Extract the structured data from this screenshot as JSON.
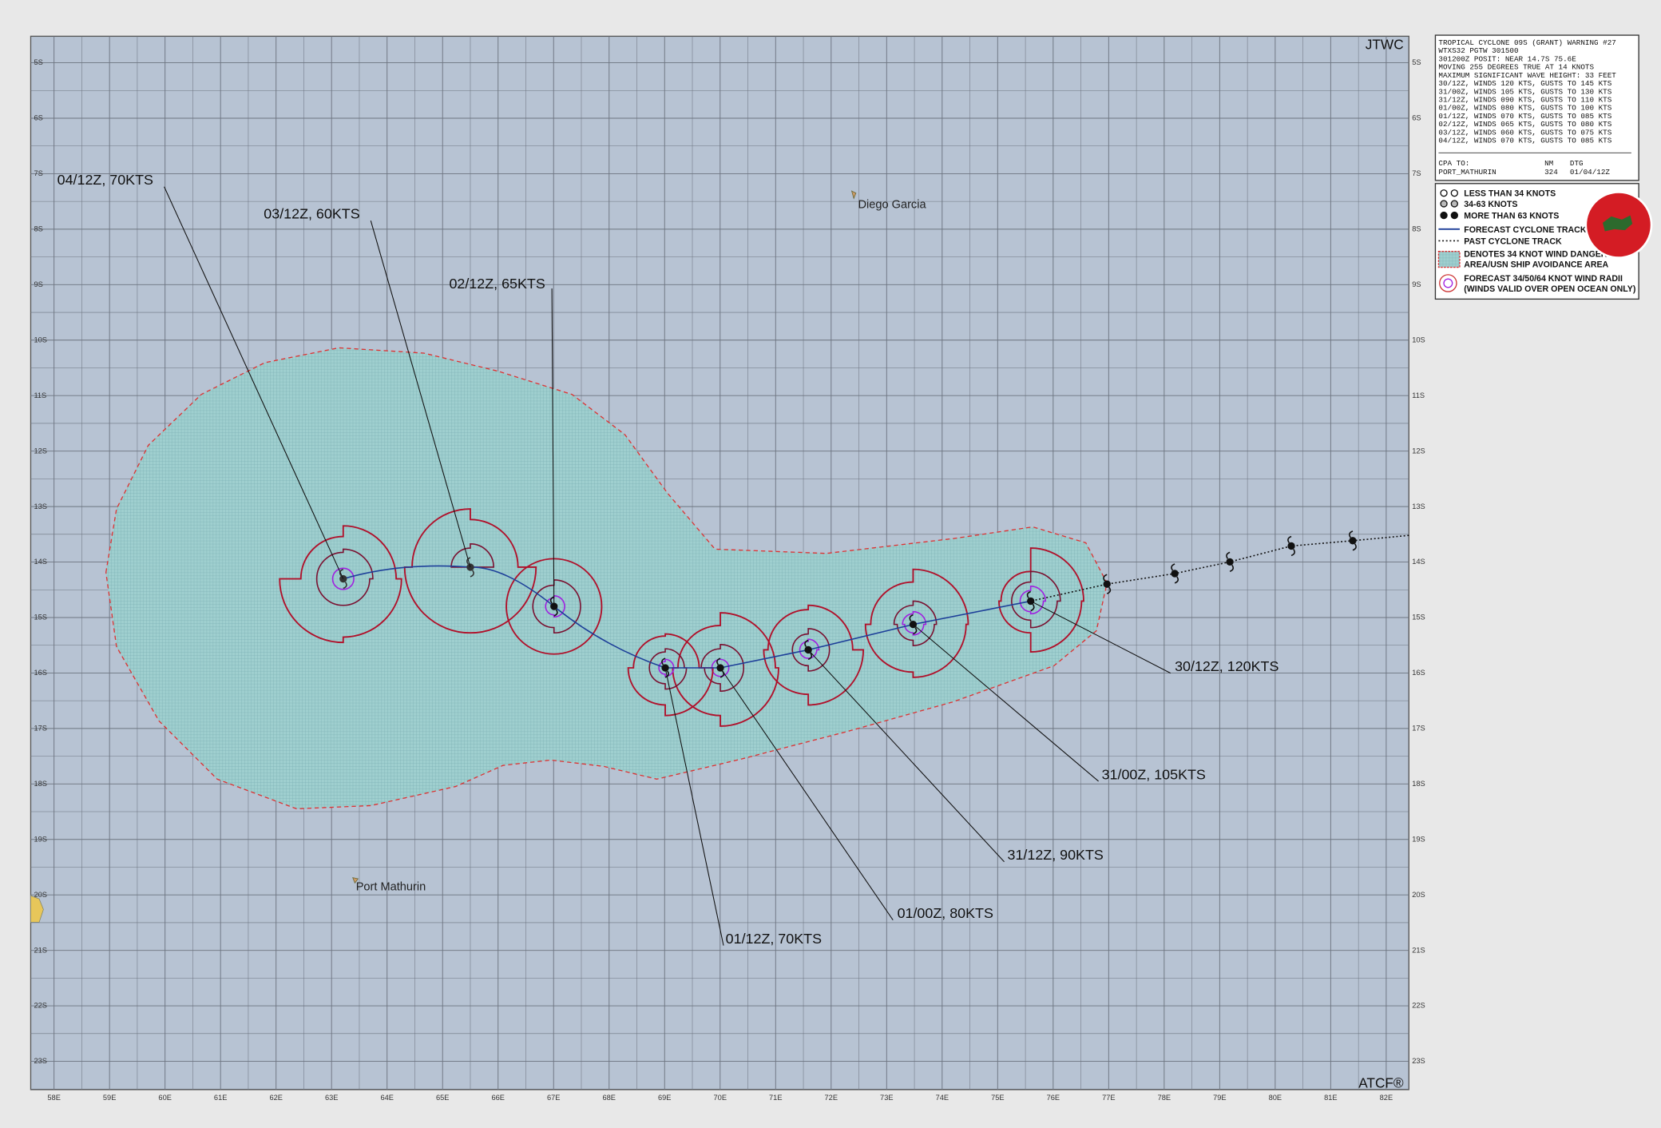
{
  "header": {
    "agency": "JTWC",
    "footer": "ATCF®"
  },
  "warning": {
    "lines": [
      "TROPICAL CYCLONE 09S (GRANT) WARNING #27",
      "WTXS32 PGTW 301500",
      "301200Z POSIT: NEAR 14.7S 75.6E",
      "MOVING 255 DEGREES TRUE AT 14 KNOTS",
      "MAXIMUM SIGNIFICANT WAVE HEIGHT: 33 FEET",
      "30/12Z, WINDS 120 KTS, GUSTS TO 145 KTS",
      "31/00Z, WINDS 105 KTS, GUSTS TO 130 KTS",
      "31/12Z, WINDS 090 KTS, GUSTS TO 110 KTS",
      "01/00Z, WINDS 080 KTS, GUSTS TO 100 KTS",
      "01/12Z, WINDS 070 KTS, GUSTS TO 085 KTS",
      "02/12Z, WINDS 065 KTS, GUSTS TO 080 KTS",
      "03/12Z, WINDS 060 KTS, GUSTS TO 075 KTS",
      "04/12Z, WINDS 070 KTS, GUSTS TO 085 KTS"
    ],
    "cpa": {
      "header": [
        "CPA TO:",
        "NM",
        "DTG"
      ],
      "row": [
        "PORT_MATHURIN",
        "324",
        "01/04/12Z"
      ]
    }
  },
  "legend": [
    "LESS THAN 34 KNOTS",
    "34-63 KNOTS",
    "MORE THAN 63 KNOTS",
    "FORECAST CYCLONE TRACK",
    "PAST CYCLONE TRACK",
    "DENOTES 34 KNOT WIND DANGER",
    "AREA/USN SHIP AVOIDANCE AREA",
    "FORECAST 34/50/64 KNOT WIND RADII",
    "(WINDS VALID OVER OPEN OCEAN ONLY)"
  ],
  "forecasts": [
    "30/12Z, 120KTS",
    "31/00Z, 105KTS",
    "31/12Z,  90KTS",
    "01/00Z,  80KTS",
    "01/12Z,  70KTS",
    "02/12Z,  65KTS",
    "03/12Z,  60KTS",
    "04/12Z,  70KTS"
  ],
  "places": [
    "Diego Garcia",
    "Port Mathurin"
  ],
  "lat_labels": [
    "5S",
    "6S",
    "7S",
    "8S",
    "9S",
    "10S",
    "11S",
    "12S",
    "13S",
    "14S",
    "15S",
    "16S",
    "17S",
    "18S",
    "19S",
    "20S",
    "21S",
    "22S",
    "23S"
  ],
  "lon_labels": [
    "58E",
    "59E",
    "60E",
    "61E",
    "62E",
    "63E",
    "64E",
    "65E",
    "66E",
    "67E",
    "68E",
    "69E",
    "70E",
    "71E",
    "72E",
    "73E",
    "74E",
    "75E",
    "76E",
    "77E",
    "78E",
    "79E",
    "80E",
    "81E",
    "82E"
  ]
}
